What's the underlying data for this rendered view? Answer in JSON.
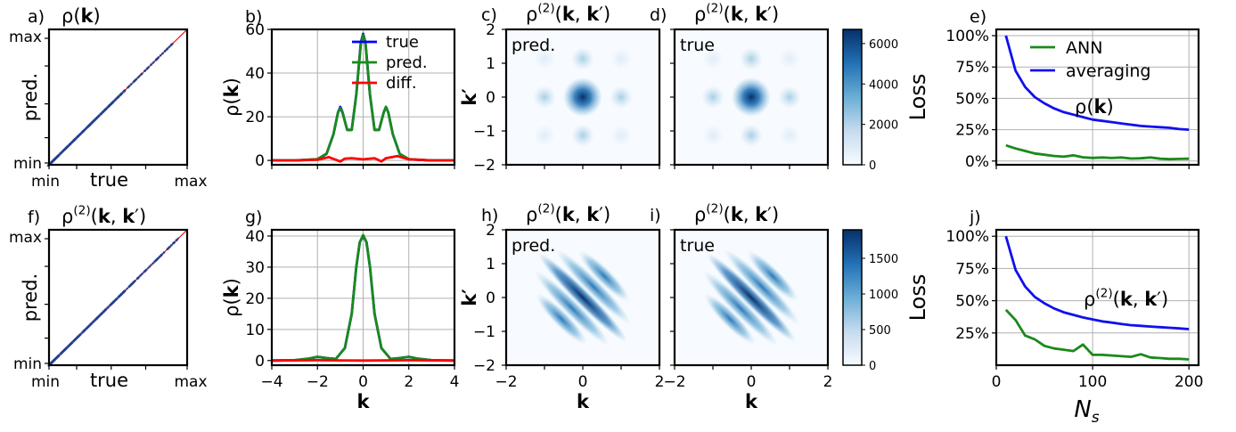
{
  "colors": {
    "true": "#0000ff",
    "pred": "#1a8a1a",
    "diff": "#ff0000",
    "ann": "#1a8a1a",
    "averaging": "#1010ee",
    "diag": "#ff0000",
    "scatter": "#1f3f8f",
    "cmap_low": "#f7fbff",
    "cmap_high": "#08306b"
  },
  "panels": {
    "a": {
      "label": "a)",
      "math_pre": "ρ(",
      "math_bold": "k",
      "math_post": ")"
    },
    "b": {
      "label": "b)"
    },
    "c": {
      "label": "c)",
      "inner": "pred."
    },
    "d": {
      "label": "d)",
      "inner": "true"
    },
    "e": {
      "label": "e)",
      "inner_math_pre": "ρ(",
      "inner_math_bold": "k",
      "inner_math_post": ")"
    },
    "f": {
      "label": "f)"
    },
    "g": {
      "label": "g)"
    },
    "h": {
      "label": "h)",
      "inner": "pred."
    },
    "i": {
      "label": "i)",
      "inner": "true"
    },
    "j": {
      "label": "j)"
    }
  },
  "text": {
    "min": "min",
    "max": "max",
    "pred_axis": "pred.",
    "true_axis": "true",
    "loss": "Loss",
    "ns_base": "N",
    "ns_sub": "s",
    "k": "k",
    "kprime": "k′",
    "rho": "ρ(",
    "close": ")"
  },
  "chart_data": [
    {
      "panel": "a",
      "type": "scatter",
      "xlabel": "true",
      "ylabel": "pred.",
      "xticklabels": [
        "min",
        "max"
      ],
      "yticklabels": [
        "min",
        "max"
      ],
      "description_line": "diagonal y=x"
    },
    {
      "panel": "b",
      "type": "line",
      "ylabel": "ρ(k)",
      "xlim": [
        -4,
        4
      ],
      "ylim": [
        -2,
        60
      ],
      "yticks": [
        0,
        20,
        40,
        60
      ],
      "legend": [
        "true",
        "pred.",
        "diff."
      ],
      "legend_loc": "top-right",
      "series": [
        {
          "name": "true",
          "x": [
            -4,
            -3,
            -2,
            -1.6,
            -1.3,
            -1.1,
            -1,
            -0.9,
            -0.7,
            -0.5,
            -0.3,
            -0.1,
            0,
            0.1,
            0.3,
            0.5,
            0.7,
            0.9,
            1,
            1.1,
            1.3,
            1.6,
            2,
            3,
            4
          ],
          "y": [
            0,
            0,
            0.5,
            3,
            12,
            22,
            24.5,
            22,
            14,
            14,
            30,
            54,
            58,
            54,
            30,
            14,
            14,
            22,
            24.5,
            22,
            12,
            3,
            0.5,
            0,
            0
          ]
        },
        {
          "name": "pred.",
          "x": [
            -4,
            -3,
            -2,
            -1.6,
            -1.3,
            -1.1,
            -1,
            -0.9,
            -0.7,
            -0.5,
            -0.3,
            -0.1,
            0,
            0.1,
            0.3,
            0.5,
            0.7,
            0.9,
            1,
            1.1,
            1.3,
            1.6,
            2,
            3,
            4
          ],
          "y": [
            0,
            0,
            0.6,
            3.2,
            12,
            22,
            24,
            21.8,
            14,
            14,
            30,
            53.5,
            57.5,
            53.5,
            30,
            14,
            14,
            22,
            24.5,
            22,
            12,
            3,
            0.6,
            0,
            0
          ]
        },
        {
          "name": "diff.",
          "x": [
            -4,
            -3,
            -2,
            -1.5,
            -1,
            -0.8,
            -0.5,
            0,
            0.5,
            0.8,
            1,
            1.5,
            2,
            3,
            4
          ],
          "y": [
            0,
            0,
            0.3,
            1.5,
            -0.5,
            0.8,
            1,
            0.5,
            1,
            -0.5,
            1,
            2,
            0.5,
            0,
            0
          ]
        }
      ]
    },
    {
      "panel": "c",
      "type": "heatmap",
      "ylabel": "k′",
      "xlim": [
        -2,
        2
      ],
      "ylim": [
        -2,
        2
      ],
      "yticks": [
        -2,
        -1,
        0,
        1,
        2
      ],
      "inner_label": "pred."
    },
    {
      "panel": "d",
      "type": "heatmap",
      "inner_label": "true",
      "colorbar_ticks": [
        0,
        2000,
        4000,
        6000
      ]
    },
    {
      "panel": "e",
      "type": "line",
      "ylabel": "Loss",
      "yticklabels": [
        "0%",
        "25%",
        "50%",
        "75%",
        "100%"
      ],
      "xlim": [
        0,
        210
      ],
      "ylim": [
        -3,
        105
      ],
      "legend": [
        "ANN",
        "averaging"
      ],
      "legend_loc": "top-right",
      "series": [
        {
          "name": "ANN",
          "x": [
            10,
            20,
            30,
            40,
            50,
            60,
            70,
            80,
            90,
            100,
            110,
            120,
            130,
            140,
            150,
            160,
            170,
            180,
            190,
            200
          ],
          "y": [
            12.5,
            10,
            8,
            6,
            5,
            4,
            3.5,
            4.5,
            3,
            2.5,
            2.8,
            2.4,
            2.8,
            2,
            2.2,
            2.8,
            1.8,
            1.5,
            1.7,
            1.8
          ]
        },
        {
          "name": "averaging",
          "x": [
            10,
            20,
            30,
            40,
            50,
            60,
            70,
            80,
            90,
            100,
            110,
            120,
            130,
            140,
            150,
            160,
            170,
            180,
            190,
            200
          ],
          "y": [
            100,
            72,
            59,
            51,
            46,
            42,
            39,
            37,
            35,
            33,
            32,
            31,
            30,
            29,
            28,
            27.5,
            27,
            26.5,
            25.5,
            25
          ]
        }
      ]
    },
    {
      "panel": "f",
      "type": "scatter",
      "xlabel": "true",
      "ylabel": "pred.",
      "xticklabels": [
        "min",
        "max"
      ],
      "yticklabels": [
        "min",
        "max"
      ]
    },
    {
      "panel": "g",
      "type": "line",
      "ylabel": "ρ(k)",
      "xlabel": "k",
      "xlim": [
        -4,
        4
      ],
      "ylim": [
        -1.5,
        42
      ],
      "xticks": [
        -4,
        -2,
        0,
        2,
        4
      ],
      "yticks": [
        0,
        10,
        20,
        30,
        40
      ],
      "series": [
        {
          "name": "true",
          "x": [
            -4,
            -3,
            -2.4,
            -2,
            -1.6,
            -1.2,
            -0.8,
            -0.5,
            -0.3,
            -0.15,
            0,
            0.15,
            0.3,
            0.5,
            0.8,
            1.2,
            1.6,
            2,
            2.4,
            3,
            4
          ],
          "y": [
            0,
            0.1,
            0.6,
            1.2,
            0.8,
            0.5,
            4,
            15,
            30,
            38,
            40,
            38,
            30,
            15,
            4,
            0.5,
            0.8,
            1.2,
            0.6,
            0.1,
            0
          ]
        },
        {
          "name": "pred.",
          "x": [
            -4,
            -3,
            -2.4,
            -2,
            -1.6,
            -1.2,
            -0.8,
            -0.5,
            -0.3,
            -0.15,
            0,
            0.15,
            0.3,
            0.5,
            0.8,
            1.2,
            1.6,
            2,
            2.4,
            3,
            4
          ],
          "y": [
            0,
            0.1,
            0.6,
            1.2,
            0.8,
            0.5,
            4,
            15,
            30,
            38,
            40.3,
            38,
            30,
            15,
            4,
            0.5,
            0.8,
            1.2,
            0.6,
            0.1,
            0
          ]
        },
        {
          "name": "diff.",
          "x": [
            -4,
            -2,
            0,
            2,
            4
          ],
          "y": [
            0,
            0.1,
            0,
            0.1,
            0
          ]
        }
      ]
    },
    {
      "panel": "h",
      "type": "heatmap",
      "ylabel": "k′",
      "xlabel": "k",
      "xlim": [
        -2,
        2
      ],
      "ylim": [
        -2,
        2
      ],
      "xticks": [
        -2,
        0,
        2
      ],
      "yticks": [
        -2,
        -1,
        0,
        1,
        2
      ],
      "inner_label": "pred."
    },
    {
      "panel": "i",
      "type": "heatmap",
      "xlabel": "k",
      "xticks": [
        -2,
        0,
        2
      ],
      "inner_label": "true",
      "colorbar_ticks": [
        0,
        500,
        1000,
        1500
      ]
    },
    {
      "panel": "j",
      "type": "line",
      "ylabel": "Loss",
      "xlabel": "N_s",
      "yticklabels": [
        "25%",
        "50%",
        "75%",
        "100%"
      ],
      "xticks": [
        0,
        100,
        200
      ],
      "xlim": [
        0,
        210
      ],
      "ylim": [
        0,
        105
      ],
      "series": [
        {
          "name": "ANN",
          "x": [
            10,
            20,
            30,
            40,
            50,
            60,
            70,
            80,
            90,
            100,
            110,
            120,
            130,
            140,
            150,
            160,
            170,
            180,
            190,
            200
          ],
          "y": [
            43,
            35,
            23,
            20,
            15,
            13,
            12,
            11,
            16,
            8,
            8,
            7.5,
            7,
            6.5,
            8.5,
            6,
            5.5,
            5,
            5,
            4.5
          ]
        },
        {
          "name": "averaging",
          "x": [
            10,
            20,
            30,
            40,
            50,
            60,
            70,
            80,
            90,
            100,
            110,
            120,
            130,
            140,
            150,
            160,
            170,
            180,
            190,
            200
          ],
          "y": [
            100,
            74,
            61,
            53,
            48,
            44,
            41,
            39,
            37,
            35.5,
            34,
            33,
            32,
            31,
            30.5,
            30,
            29.5,
            29,
            28.5,
            28
          ]
        }
      ]
    }
  ]
}
